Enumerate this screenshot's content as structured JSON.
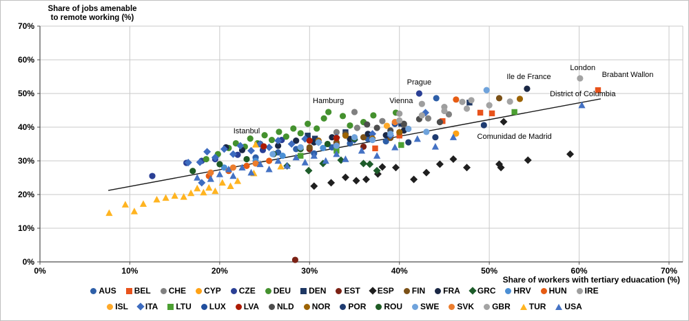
{
  "chart_data": {
    "type": "scatter",
    "y_title_line1": "Share of jobs amenable",
    "y_title_line2": "to remote working (%)",
    "xlabel": "Share of workers with tertiary eduacation (%)",
    "xlim": [
      0,
      70
    ],
    "ylim": [
      0,
      70
    ],
    "tick_step": 10,
    "tick_suffix": "%",
    "grid": true,
    "grid_color": "#c9c9c9",
    "axis_color": "#4d4d4d",
    "trendline_color": "#1a1a1a",
    "legend_rows": [
      15,
      14
    ],
    "trendline": {
      "x1": 7.6,
      "y1": 21.2,
      "x2": 62.4,
      "y2": 48.4
    },
    "annotations": [
      {
        "text": "Istanbul",
        "x": 23.0,
        "y": 39.0
      },
      {
        "text": "Hamburg",
        "x": 32.1,
        "y": 48.0
      },
      {
        "text": "Prague",
        "x": 42.2,
        "y": 53.5
      },
      {
        "text": "Vienna",
        "x": 40.2,
        "y": 48.0
      },
      {
        "text": "Ile de France",
        "x": 54.4,
        "y": 55.1
      },
      {
        "text": "London",
        "x": 60.4,
        "y": 57.8
      },
      {
        "text": "Brabant Wallon",
        "x": 65.4,
        "y": 55.7
      },
      {
        "text": "District of Columbia",
        "x": 60.4,
        "y": 50.0
      },
      {
        "text": "Comunidad de Madrid",
        "x": 52.8,
        "y": 37.3
      }
    ],
    "series": [
      {
        "name": "AUS",
        "shape": "circle",
        "color": "#2e5fa8",
        "points": [
          [
            24,
            31
          ],
          [
            26.5,
            32.5
          ],
          [
            28.5,
            33.5
          ],
          [
            30.5,
            32.2
          ],
          [
            32.5,
            34
          ],
          [
            34.5,
            35.2
          ],
          [
            36.5,
            36.5
          ],
          [
            38.5,
            35.8
          ],
          [
            44.1,
            48.6
          ]
        ]
      },
      {
        "name": "BEL",
        "shape": "square",
        "color": "#e8531c",
        "points": [
          [
            37.3,
            33.7
          ],
          [
            40,
            37.5
          ],
          [
            44.8,
            41.8
          ],
          [
            49,
            44.3
          ],
          [
            50.3,
            44.1
          ],
          [
            62.1,
            51
          ]
        ]
      },
      {
        "name": "CHE",
        "shape": "circle",
        "color": "#808080",
        "points": [
          [
            33,
            38.5
          ],
          [
            35,
            44.5
          ],
          [
            35.3,
            39.8
          ],
          [
            38.1,
            41.8
          ],
          [
            40.5,
            40.5
          ],
          [
            43.2,
            42.6
          ],
          [
            45.5,
            43.8
          ]
        ]
      },
      {
        "name": "CYP",
        "shape": "circle",
        "color": "#ffa215",
        "points": [
          [
            46.3,
            38.1
          ]
        ]
      },
      {
        "name": "CZE",
        "shape": "circle",
        "color": "#2a3f95",
        "points": [
          [
            12.5,
            25.5
          ],
          [
            16.3,
            29.4
          ],
          [
            18,
            30
          ],
          [
            19.5,
            30.5
          ],
          [
            22,
            31.8
          ],
          [
            24.8,
            33.2
          ],
          [
            26.9,
            36.2
          ],
          [
            42.2,
            50
          ]
        ]
      },
      {
        "name": "DEU",
        "shape": "circle",
        "color": "#44912e",
        "points": [
          [
            18.5,
            30.5
          ],
          [
            19.8,
            32
          ],
          [
            21,
            33.8
          ],
          [
            21.8,
            35.2
          ],
          [
            22.8,
            34.2
          ],
          [
            23.4,
            36.6
          ],
          [
            24.2,
            35.2
          ],
          [
            25,
            37.6
          ],
          [
            25.8,
            36.2
          ],
          [
            26.6,
            38.6
          ],
          [
            27.4,
            37.2
          ],
          [
            28.2,
            39.6
          ],
          [
            29,
            38.2
          ],
          [
            29.8,
            41
          ],
          [
            30.8,
            39.6
          ],
          [
            31.6,
            42.6
          ],
          [
            32.1,
            44.5
          ],
          [
            33.7,
            43.3
          ],
          [
            34.5,
            40.5
          ],
          [
            36,
            41.5
          ],
          [
            37.1,
            43.5
          ],
          [
            39.6,
            44.3
          ]
        ]
      },
      {
        "name": "DEN",
        "shape": "square",
        "color": "#1f3864",
        "points": [
          [
            29.8,
            37.5
          ],
          [
            30.6,
            36.6
          ],
          [
            34,
            38.5
          ],
          [
            40.2,
            41
          ],
          [
            47.8,
            47.3
          ]
        ]
      },
      {
        "name": "EST",
        "shape": "circle",
        "color": "#7b2114",
        "points": [
          [
            26,
            32
          ],
          [
            28.4,
            0.6
          ],
          [
            30,
            33.5
          ],
          [
            33,
            35
          ],
          [
            36,
            34.2
          ]
        ]
      },
      {
        "name": "ESP",
        "shape": "diamond",
        "color": "#1f1f1f",
        "points": [
          [
            30.5,
            22.5
          ],
          [
            32.4,
            23.5
          ],
          [
            34,
            25.1
          ],
          [
            35.2,
            24.1
          ],
          [
            36.3,
            24.5
          ],
          [
            37.6,
            26.1
          ],
          [
            38.1,
            28.2
          ],
          [
            39.6,
            28
          ],
          [
            41.6,
            24.5
          ],
          [
            43,
            26.5
          ],
          [
            44.5,
            29
          ],
          [
            46,
            30.5
          ],
          [
            47.5,
            28
          ],
          [
            51.1,
            29
          ],
          [
            51.3,
            28
          ],
          [
            51.6,
            41.6
          ],
          [
            54.3,
            30.2
          ],
          [
            59,
            32
          ]
        ]
      },
      {
        "name": "FIN",
        "shape": "circle",
        "color": "#7b5117",
        "points": [
          [
            30,
            34
          ],
          [
            33,
            35.5
          ],
          [
            36,
            37
          ],
          [
            39,
            36.8
          ],
          [
            51.1,
            48.6
          ]
        ]
      },
      {
        "name": "FRA",
        "shape": "circle",
        "color": "#1a2744",
        "points": [
          [
            20.7,
            34
          ],
          [
            22.5,
            33.2
          ],
          [
            24.5,
            35
          ],
          [
            26.5,
            34.5
          ],
          [
            28.5,
            36
          ],
          [
            30.5,
            35.5
          ],
          [
            32.5,
            37
          ],
          [
            34.5,
            36.5
          ],
          [
            36.5,
            38
          ],
          [
            38.5,
            37.6
          ],
          [
            40.5,
            39
          ],
          [
            54.2,
            51.4
          ]
        ]
      },
      {
        "name": "GRC",
        "shape": "diamond",
        "color": "#1d5c2a",
        "points": [
          [
            27.5,
            28.5
          ],
          [
            29.9,
            27.1
          ],
          [
            31.5,
            29.2
          ],
          [
            33.5,
            30.2
          ],
          [
            36,
            29.2
          ],
          [
            36.7,
            29
          ],
          [
            37.5,
            27.1
          ]
        ]
      },
      {
        "name": "HRV",
        "shape": "circle",
        "color": "#4b8fd4",
        "points": [
          [
            20.5,
            28
          ],
          [
            24,
            30
          ],
          [
            27,
            31.5
          ],
          [
            31.5,
            33.8
          ]
        ]
      },
      {
        "name": "HUN",
        "shape": "circle",
        "color": "#e65c13",
        "points": [
          [
            18.8,
            25.5
          ],
          [
            21,
            27
          ],
          [
            23,
            28.5
          ],
          [
            25.5,
            30
          ],
          [
            46.3,
            48.2
          ]
        ]
      },
      {
        "name": "IRE",
        "shape": "circle",
        "color": "#9e9e9e",
        "points": [
          [
            40,
            44
          ],
          [
            42.5,
            46.9
          ],
          [
            45,
            46
          ],
          [
            47,
            47.5
          ]
        ]
      },
      {
        "name": "ISL",
        "shape": "circle",
        "color": "#ffa929",
        "points": [
          [
            38.6,
            40.4
          ]
        ]
      },
      {
        "name": "ITA",
        "shape": "diamond",
        "color": "#3d6cc0",
        "points": [
          [
            16.5,
            29.5
          ],
          [
            17.8,
            29.6
          ],
          [
            18,
            23.5
          ],
          [
            18.6,
            32.7
          ],
          [
            19.5,
            31
          ],
          [
            20.5,
            33.5
          ],
          [
            21.5,
            32
          ],
          [
            22.3,
            34.5
          ],
          [
            23.5,
            33
          ],
          [
            24.5,
            35
          ],
          [
            25.5,
            34
          ],
          [
            26.5,
            36
          ],
          [
            28,
            35
          ],
          [
            29.5,
            36.5
          ],
          [
            31,
            35.5
          ],
          [
            33,
            37
          ],
          [
            35,
            36.2
          ],
          [
            37,
            38
          ],
          [
            39,
            37.5
          ],
          [
            42.9,
            44.3
          ]
        ]
      },
      {
        "name": "LTU",
        "shape": "square",
        "color": "#4ca032",
        "points": [
          [
            29,
            31.5
          ],
          [
            33,
            33
          ],
          [
            40.2,
            34.7
          ],
          [
            52.8,
            44.5
          ]
        ]
      },
      {
        "name": "LUX",
        "shape": "circle",
        "color": "#1f4e9e",
        "points": [
          [
            39.5,
            41
          ]
        ]
      },
      {
        "name": "LVA",
        "shape": "circle",
        "color": "#ad1a02",
        "points": [
          [
            24.9,
            34.3
          ],
          [
            30,
            36
          ],
          [
            33,
            36.8
          ]
        ]
      },
      {
        "name": "NLD",
        "shape": "circle",
        "color": "#4d4d4d",
        "points": [
          [
            34,
            38
          ],
          [
            36.4,
            40.8
          ],
          [
            37.5,
            39.8
          ],
          [
            39,
            39
          ],
          [
            40.5,
            41
          ],
          [
            42.2,
            42.4
          ],
          [
            44.5,
            41.5
          ]
        ]
      },
      {
        "name": "NOR",
        "shape": "circle",
        "color": "#9c6303",
        "points": [
          [
            31,
            36
          ],
          [
            34,
            37.5
          ],
          [
            37,
            36.6
          ],
          [
            40,
            38.5
          ],
          [
            53.4,
            48.4
          ]
        ]
      },
      {
        "name": "POR",
        "shape": "circle",
        "color": "#1e3b70",
        "points": [
          [
            41,
            35.5
          ],
          [
            44,
            37
          ],
          [
            49.4,
            40.6
          ]
        ]
      },
      {
        "name": "ROU",
        "shape": "circle",
        "color": "#1e5b24",
        "points": [
          [
            17,
            27
          ],
          [
            20,
            29
          ],
          [
            23,
            30.5
          ],
          [
            26,
            32
          ],
          [
            29,
            33.5
          ],
          [
            32,
            35
          ],
          [
            35,
            36.5
          ]
        ]
      },
      {
        "name": "SWE",
        "shape": "circle",
        "color": "#6fa3dc",
        "points": [
          [
            25.9,
            32
          ],
          [
            29,
            34
          ],
          [
            31,
            35.5
          ],
          [
            33,
            34.5
          ],
          [
            35,
            37
          ],
          [
            37,
            36.2
          ],
          [
            39,
            38
          ],
          [
            41,
            39.5
          ],
          [
            43,
            38.6
          ],
          [
            49.7,
            51
          ]
        ]
      },
      {
        "name": "SVK",
        "shape": "circle",
        "color": "#ec7d2d",
        "points": [
          [
            19,
            26.5
          ],
          [
            21.5,
            28
          ],
          [
            24,
            29.2
          ],
          [
            39.5,
            41.5
          ]
        ]
      },
      {
        "name": "GBR",
        "shape": "circle",
        "color": "#a3a3a3",
        "points": [
          [
            40,
            42
          ],
          [
            42.5,
            43.5
          ],
          [
            45,
            44.8
          ],
          [
            47.5,
            45.5
          ],
          [
            48,
            48
          ],
          [
            50,
            46.5
          ],
          [
            52.3,
            47.6
          ],
          [
            60.1,
            54.5
          ]
        ]
      },
      {
        "name": "TUR",
        "shape": "triangle",
        "color": "#ffb421",
        "points": [
          [
            7.7,
            14.5
          ],
          [
            9.5,
            17
          ],
          [
            10.5,
            15
          ],
          [
            11.5,
            17.2
          ],
          [
            13,
            18.5
          ],
          [
            14,
            19
          ],
          [
            15,
            19.6
          ],
          [
            16,
            19.3
          ],
          [
            16.8,
            20.4
          ],
          [
            17.5,
            21.8
          ],
          [
            18.2,
            20.6
          ],
          [
            18.8,
            22
          ],
          [
            19.5,
            21
          ],
          [
            20.3,
            23.5
          ],
          [
            21.2,
            22.5
          ],
          [
            22,
            24
          ],
          [
            23.8,
            26.3
          ],
          [
            26.8,
            28.3
          ],
          [
            24,
            34.8
          ]
        ]
      },
      {
        "name": "USA",
        "shape": "triangle",
        "color": "#4472c4",
        "points": [
          [
            17.5,
            25
          ],
          [
            19,
            24.6
          ],
          [
            20,
            26
          ],
          [
            21,
            27.5
          ],
          [
            21.5,
            25.5
          ],
          [
            22.5,
            28
          ],
          [
            23.5,
            26.5
          ],
          [
            24.5,
            29
          ],
          [
            25.5,
            27.5
          ],
          [
            26.5,
            30
          ],
          [
            27.5,
            28.5
          ],
          [
            28.5,
            31
          ],
          [
            29.5,
            29.5
          ],
          [
            30.5,
            31.5
          ],
          [
            31.8,
            30
          ],
          [
            33,
            32
          ],
          [
            34,
            30.5
          ],
          [
            35.8,
            33
          ],
          [
            37.5,
            31.5
          ],
          [
            39.5,
            34
          ],
          [
            42,
            36.5
          ],
          [
            44,
            34.2
          ],
          [
            46,
            37
          ],
          [
            60.3,
            46.5
          ]
        ]
      }
    ]
  }
}
